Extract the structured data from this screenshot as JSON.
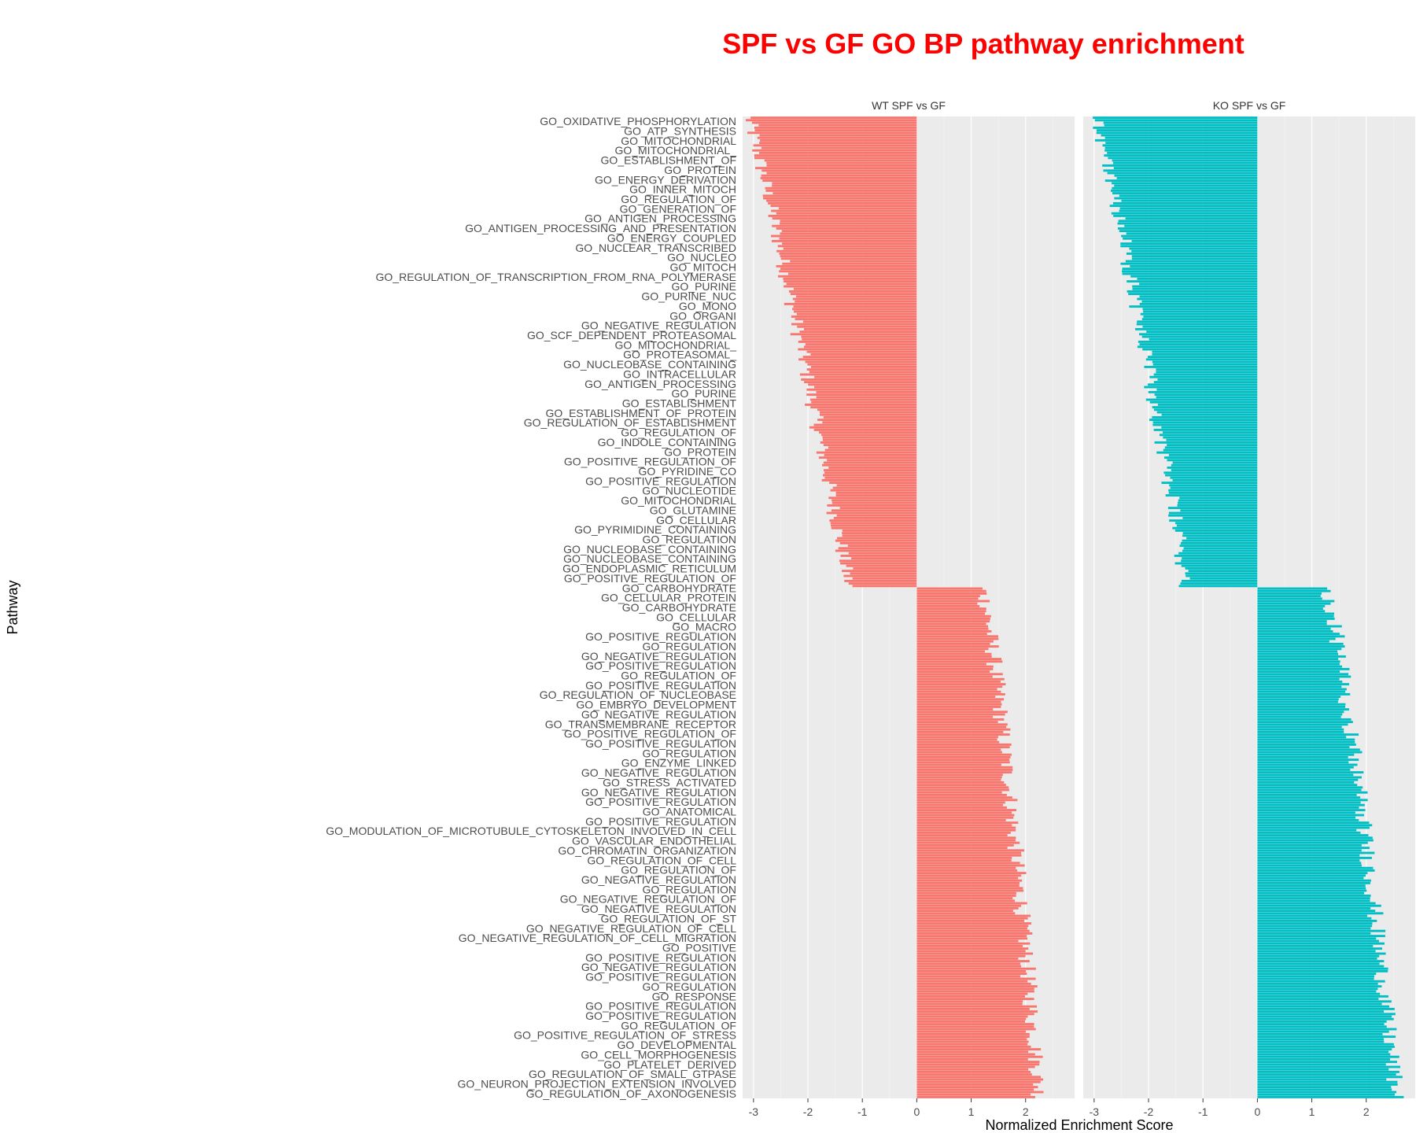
{
  "chart_data": {
    "type": "bar",
    "orientation": "horizontal",
    "title": "SPF vs GF GO BP pathway enrichment",
    "xlabel": "Normalized Enrichment Score",
    "ylabel": "Pathway",
    "xlim": [
      -3.2,
      2.9
    ],
    "xticks": [
      -3,
      -2,
      -1,
      0,
      1,
      2
    ],
    "grid": true,
    "legend": "none",
    "category_count": 390,
    "sorted_by": "WT SPF vs GF",
    "pathway_labels": [
      "GO_OXIDATIVE_PHOSPHORYLATION",
      "GO_ATP_SYNTHESIS",
      "GO_MITOCHONDRIAL",
      "GO_MITOCHONDRIAL_",
      "GO_ESTABLISHMENT_OF",
      "GO_PROTEIN",
      "GO_ENERGY_DERIVATION",
      "GO_INNER_MITOCH",
      "GO_REGULATION_OF",
      "GO_GENERATION_OF",
      "GO_ANTIGEN_PROCESSING",
      "GO_ANTIGEN_PROCESSING_AND_PRESENTATION",
      "GO_ENERGY_COUPLED",
      "GO_NUCLEAR_TRANSCRIBED",
      "GO_NUCLEO",
      "GO_MITOCH",
      "GO_REGULATION_OF_TRANSCRIPTION_FROM_RNA_POLYMERASE",
      "GO_PURINE",
      "GO_PURINE_NUC",
      "GO_MONO",
      "GO_ORGANI",
      "GO_NEGATIVE_REGULATION",
      "GO_SCF_DEPENDENT_PROTEASOMAL",
      "GO_MITOCHONDRIAL_",
      "GO_PROTEASOMAL_",
      "GO_NUCLEOBASE_CONTAINING",
      "GO_INTRACELLULAR",
      "GO_ANTIGEN_PROCESSING",
      "GO_PURINE",
      "GO_ESTABLISHMENT",
      "GO_ESTABLISHMENT_OF_PROTEIN",
      "GO_REGULATION_OF_ESTABLISHMENT",
      "GO_REGULATION_OF",
      "GO_INDOLE_CONTAINING",
      "GO_PROTEIN",
      "GO_POSITIVE_REGULATION_OF",
      "GO_PYRIDINE_CO",
      "GO_POSITIVE_REGULATION",
      "GO_NUCLEOTIDE",
      "GO_MITOCHONDRIAL",
      "GO_GLUTAMINE",
      "GO_CELLULAR",
      "GO_PYRIMIDINE_CONTAINING",
      "GO_REGULATION",
      "GO_NUCLEOBASE_CONTAINING",
      "GO_NUCLEOBASE_CONTAINING",
      "GO_ENDOPLASMIC_RETICULUM",
      "GO_POSITIVE_REGULATION_OF",
      "GO_CARBOHYDRATE",
      "GO_CELLULAR_PROTEIN",
      "GO_CARBOHYDRATE",
      "GO_CELLULAR",
      "GO_MACRO",
      "GO_POSITIVE_REGULATION",
      "GO_REGULATION",
      "GO_NEGATIVE_REGULATION",
      "GO_POSITIVE_REGULATION",
      "GO_REGULATION_OF",
      "GO_POSITIVE_REGULATION",
      "GO_REGULATION_OF_NUCLEOBASE",
      "GO_EMBRYO_DEVELOPMENT",
      "GO_NEGATIVE_REGULATION",
      "GO_TRANSMEMBRANE_RECEPTOR",
      "GO_POSITIVE_REGULATION_OF",
      "GO_POSITIVE_REGULATION",
      "GO_REGULATION",
      "GO_ENZYME_LINKED",
      "GO_NEGATIVE_REGULATION",
      "GO_STRESS_ACTIVATED",
      "GO_NEGATIVE_REGULATION",
      "GO_POSITIVE_REGULATION",
      "GO_ANATOMICAL",
      "GO_POSITIVE_REGULATION",
      "GO_MODULATION_OF_MICROTUBULE_CYTOSKELETON_INVOLVED_IN_CELL",
      "GO_VASCULAR_ENDOTHELIAL",
      "GO_CHROMATIN_ORGANIZATION",
      "GO_REGULATION_OF_CELL",
      "GO_REGULATION_OF",
      "GO_NEGATIVE_REGULATION",
      "GO_REGULATION",
      "GO_NEGATIVE_REGULATION_OF",
      "GO_NEGATIVE_REGULATION",
      "GO_REGULATION_OF_ST",
      "GO_NEGATIVE_REGULATION_OF_CELL",
      "GO_NEGATIVE_REGULATION_OF_CELL_MIGRATION",
      "GO_POSITIVE",
      "GO_POSITIVE_REGULATION",
      "GO_NEGATIVE_REGULATION",
      "GO_POSITIVE_REGULATION",
      "GO_REGULATION",
      "GO_RESPONSE",
      "GO_POSITIVE_REGULATION",
      "GO_POSITIVE_REGULATION",
      "GO_REGULATION_OF",
      "GO_POSITIVE_REGULATION_OF_STRESS",
      "GO_DEVELOPMENTAL",
      "GO_CELL_MORPHOGENESIS",
      "GO_PLATELET_DERIVED",
      "GO_REGULATION_OF_SMALL_GTPASE",
      "GO_NEURON_PROJECTION_EXTENSION_INVOLVED",
      "GO_REGULATION_OF_AXONOGENESIS"
    ],
    "series": [
      {
        "name": "WT SPF vs GF",
        "color": "#f8766d",
        "negative_segment": {
          "count": 187,
          "value_range": [
            -3.1,
            -1.25
          ]
        },
        "positive_segment": {
          "count": 203,
          "value_range": [
            1.2,
            2.25
          ]
        }
      },
      {
        "name": "KO SPF vs GF",
        "color": "#00bfc4",
        "negative_segment": {
          "count": 187,
          "value_range": [
            -2.95,
            -1.3
          ]
        },
        "positive_segment": {
          "count": 203,
          "value_range": [
            1.25,
            2.55
          ]
        }
      }
    ]
  }
}
